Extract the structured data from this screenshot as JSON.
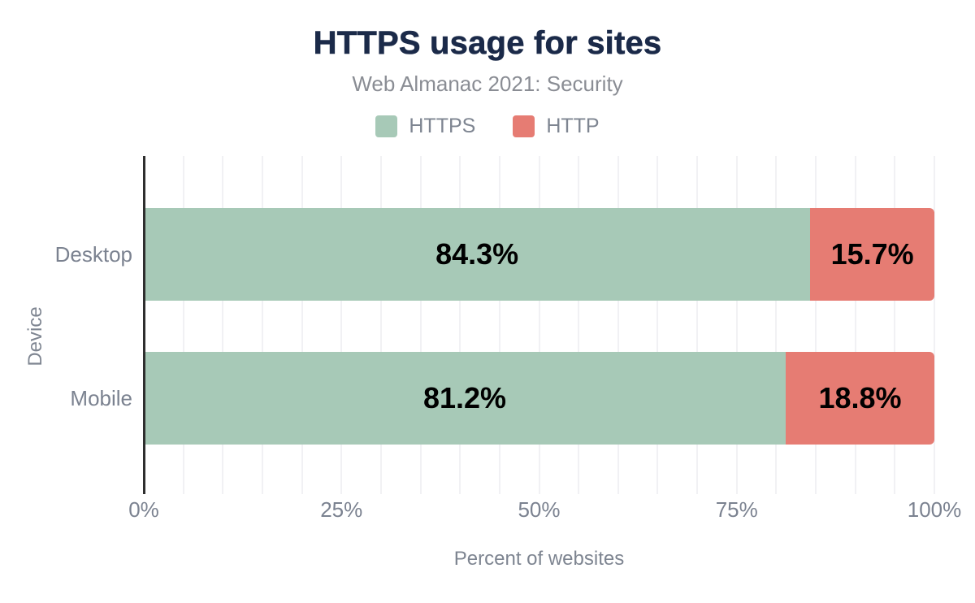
{
  "page": {
    "background": "#ffffff"
  },
  "header": {
    "title": "HTTPS usage for sites",
    "subtitle": "Web Almanac 2021: Security"
  },
  "colors": {
    "title_text": "#1b2a49",
    "subtitle_text": "#8a8d94",
    "legend_text": "#7e8591",
    "axis_text": "#7b8290",
    "axis_title_text": "#7e8591",
    "value_label_text": "#000000",
    "axis_line": "#2f2f2f",
    "gridline": "#f1f1f4",
    "https_green": "#a7c9b7",
    "http_red": "#e67c73"
  },
  "chart_data": {
    "type": "bar",
    "orientation": "horizontal",
    "stacked": true,
    "title": "HTTPS usage for sites",
    "subtitle": "Web Almanac 2021: Security",
    "categories": [
      "Desktop",
      "Mobile"
    ],
    "series": [
      {
        "name": "HTTPS",
        "color": "#a7c9b7",
        "values": [
          84.3,
          81.2
        ],
        "value_labels": [
          "84.3%",
          "81.2%"
        ]
      },
      {
        "name": "HTTP",
        "color": "#e67c73",
        "values": [
          15.7,
          18.8
        ],
        "value_labels": [
          "15.7%",
          "18.8%"
        ]
      }
    ],
    "xlabel": "Percent of websites",
    "ylabel": "Device",
    "xlim": [
      0,
      100
    ],
    "xticks": [
      {
        "value": 0,
        "label": "0%"
      },
      {
        "value": 25,
        "label": "25%"
      },
      {
        "value": 50,
        "label": "50%"
      },
      {
        "value": 75,
        "label": "75%"
      },
      {
        "value": 100,
        "label": "100%"
      }
    ],
    "grid": {
      "show": true,
      "minor_step_percent": 5
    },
    "legend_position": "top"
  }
}
